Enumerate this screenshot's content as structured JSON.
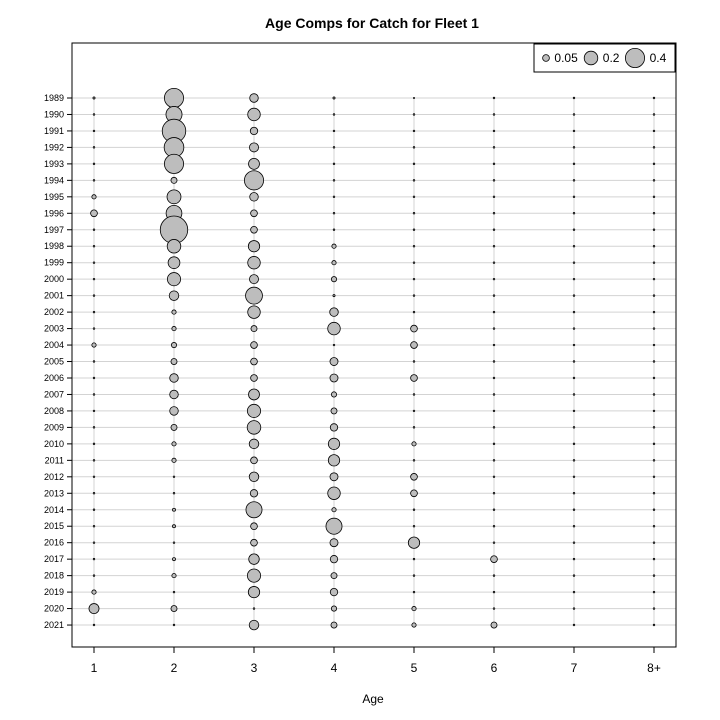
{
  "chart_data": {
    "type": "scatter",
    "title": "Age Comps for Catch for Fleet 1",
    "xlabel": "Age",
    "ylabel": "",
    "x_categories": [
      "1",
      "2",
      "3",
      "4",
      "5",
      "6",
      "7",
      "8+"
    ],
    "years": [
      "1989",
      "1990",
      "1991",
      "1992",
      "1993",
      "1994",
      "1995",
      "1996",
      "1997",
      "1998",
      "1999",
      "2000",
      "2001",
      "2002",
      "2003",
      "2004",
      "2005",
      "2006",
      "2007",
      "2008",
      "2009",
      "2010",
      "2011",
      "2012",
      "2013",
      "2014",
      "2015",
      "2016",
      "2017",
      "2018",
      "2019",
      "2020",
      "2021"
    ],
    "proportions": [
      [
        0.005,
        0.4,
        0.08,
        0.005,
        0.001,
        0.003,
        0.003,
        0.003
      ],
      [
        0.003,
        0.28,
        0.17,
        0.003,
        0.003,
        0.003,
        0.003,
        0.003
      ],
      [
        0.003,
        0.6,
        0.06,
        0.003,
        0.003,
        0.003,
        0.003,
        0.003
      ],
      [
        0.003,
        0.42,
        0.09,
        0.003,
        0.003,
        0.003,
        0.003,
        0.003
      ],
      [
        0.003,
        0.4,
        0.13,
        0.003,
        0.003,
        0.003,
        0.003,
        0.003
      ],
      [
        0.003,
        0.04,
        0.4,
        0.003,
        0.003,
        0.003,
        0.003,
        0.003
      ],
      [
        0.02,
        0.21,
        0.08,
        0.003,
        0.003,
        0.003,
        0.003,
        0.003
      ],
      [
        0.05,
        0.27,
        0.05,
        0.003,
        0.003,
        0.003,
        0.003,
        0.003
      ],
      [
        0.003,
        0.82,
        0.05,
        0.003,
        0.003,
        0.003,
        0.003,
        0.003
      ],
      [
        0.003,
        0.2,
        0.14,
        0.02,
        0.003,
        0.003,
        0.003,
        0.003
      ],
      [
        0.003,
        0.15,
        0.17,
        0.02,
        0.003,
        0.003,
        0.003,
        0.003
      ],
      [
        0.003,
        0.19,
        0.09,
        0.03,
        0.003,
        0.003,
        0.003,
        0.003
      ],
      [
        0.003,
        0.1,
        0.31,
        0.005,
        0.003,
        0.003,
        0.003,
        0.003
      ],
      [
        0.003,
        0.02,
        0.17,
        0.08,
        0.003,
        0.003,
        0.003,
        0.003
      ],
      [
        0.003,
        0.02,
        0.04,
        0.17,
        0.05,
        0.003,
        0.003,
        0.003
      ],
      [
        0.02,
        0.03,
        0.05,
        0.003,
        0.05,
        0.003,
        0.003,
        0.003
      ],
      [
        0.003,
        0.04,
        0.05,
        0.07,
        0.003,
        0.003,
        0.003,
        0.003
      ],
      [
        0.003,
        0.08,
        0.05,
        0.07,
        0.05,
        0.003,
        0.003,
        0.003
      ],
      [
        0.003,
        0.08,
        0.13,
        0.03,
        0.003,
        0.003,
        0.003,
        0.003
      ],
      [
        0.003,
        0.08,
        0.19,
        0.04,
        0.003,
        0.003,
        0.003,
        0.003
      ],
      [
        0.003,
        0.04,
        0.2,
        0.06,
        0.003,
        0.003,
        0.003,
        0.003
      ],
      [
        0.003,
        0.02,
        0.1,
        0.14,
        0.02,
        0.003,
        0.003,
        0.003
      ],
      [
        0.003,
        0.02,
        0.05,
        0.14,
        0.003,
        0.003,
        0.003,
        0.003
      ],
      [
        0.003,
        0.003,
        0.1,
        0.07,
        0.05,
        0.003,
        0.003,
        0.003
      ],
      [
        0.003,
        0.003,
        0.06,
        0.17,
        0.05,
        0.003,
        0.003,
        0.003
      ],
      [
        0.003,
        0.01,
        0.28,
        0.02,
        0.003,
        0.003,
        0.003,
        0.003
      ],
      [
        0.003,
        0.01,
        0.05,
        0.28,
        0.003,
        0.003,
        0.003,
        0.003
      ],
      [
        0.003,
        0.003,
        0.05,
        0.07,
        0.14,
        0.003,
        0.003,
        0.003
      ],
      [
        0.003,
        0.01,
        0.12,
        0.06,
        0.003,
        0.05,
        0.003,
        0.003
      ],
      [
        0.003,
        0.02,
        0.19,
        0.04,
        0.003,
        0.003,
        0.003,
        0.003
      ],
      [
        0.02,
        0.003,
        0.14,
        0.06,
        0.003,
        0.003,
        0.003,
        0.003
      ],
      [
        0.11,
        0.04,
        0.003,
        0.03,
        0.02,
        0.003,
        0.003,
        0.003
      ],
      [
        0.003,
        0.003,
        0.1,
        0.04,
        0.02,
        0.04,
        0.003,
        0.003
      ]
    ],
    "legend": {
      "position": "top-right",
      "entries": [
        {
          "label": "0.05",
          "value": 0.05
        },
        {
          "label": "0.2",
          "value": 0.2
        },
        {
          "label": "0.4",
          "value": 0.4
        }
      ]
    },
    "grid": true,
    "colors": {
      "bubble_fill": "#bdbdbd",
      "bubble_stroke": "#000000",
      "grid": "#d3d3d3"
    }
  }
}
